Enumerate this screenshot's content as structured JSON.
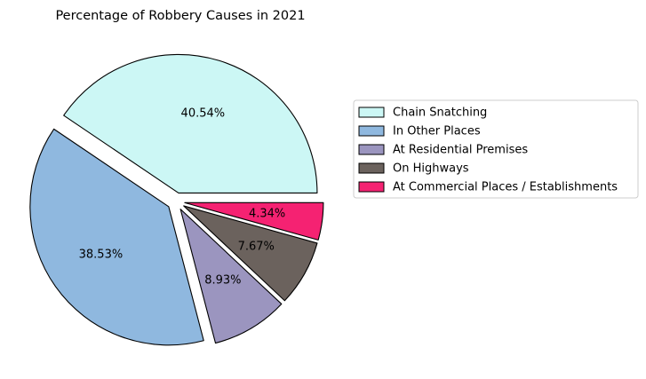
{
  "chart_data": {
    "type": "pie",
    "title": "Percentage of Robbery Causes in 2021",
    "slices": [
      {
        "label": "Chain Snatching",
        "value": 40.54,
        "pct_label": "40.54%",
        "color": "#ccf7f5",
        "explode": true
      },
      {
        "label": "In Other Places",
        "value": 38.53,
        "pct_label": "38.53%",
        "color": "#8fb8df",
        "explode": true
      },
      {
        "label": "At Residential Premises",
        "value": 8.93,
        "pct_label": "8.93%",
        "color": "#9b95bf",
        "explode": true
      },
      {
        "label": "On Highways",
        "value": 7.67,
        "pct_label": "7.67%",
        "color": "#6b625d",
        "explode": true
      },
      {
        "label": "At Commercial Places / Establishments",
        "value": 4.34,
        "pct_label": "4.34%",
        "color": "#f52272",
        "explode": true
      }
    ],
    "start_angle_deg": 0,
    "direction": "counterclockwise",
    "legend_position": "right"
  }
}
